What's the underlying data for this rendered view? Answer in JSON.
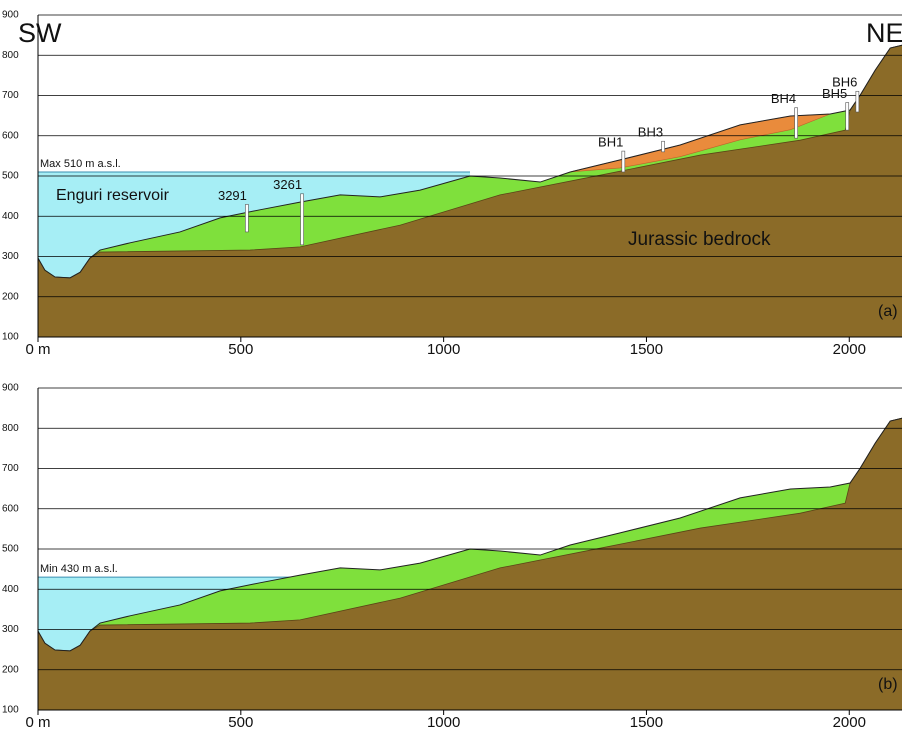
{
  "chart_data": [
    {
      "type": "profile",
      "title": "SW",
      "title_right": "NE",
      "panel_label": "(a)",
      "water_level_label": "Max 510 m a.s.l.",
      "water_name": "Enguri reservoir",
      "bedrock_name": "Jurassic bedrock",
      "water_level": 510,
      "water_x": [
        0,
        1065
      ],
      "xlim": [
        0,
        2130
      ],
      "ylim": [
        100,
        900
      ],
      "xticks": [
        {
          "value": 0,
          "label": "0 m"
        },
        500,
        1000,
        1500,
        2000
      ],
      "yticks": [
        100,
        200,
        300,
        400,
        500,
        600,
        700,
        800,
        900
      ],
      "grid": true,
      "colors": {
        "water": "#a6eef5",
        "sediment": "#7fe03c",
        "bedrock": "#8b6b28",
        "slide": "#e98b3c"
      },
      "surface": {
        "x": [
          0,
          17,
          42,
          79,
          104,
          128,
          153,
          227,
          350,
          449,
          547,
          646,
          745,
          843,
          942,
          1065,
          1139,
          1238,
          1312,
          1435,
          1583,
          1731,
          1855,
          1953,
          2002,
          2027,
          2064,
          2101,
          2130
        ],
        "y": [
          296,
          266,
          249,
          247,
          261,
          296,
          316,
          334,
          361,
          396,
          416,
          435,
          453,
          448,
          465,
          500,
          495,
          485,
          510,
          540,
          577,
          627,
          649,
          654,
          664,
          701,
          763,
          818,
          825
        ]
      },
      "bedrock": {
        "x": [
          0,
          17,
          42,
          79,
          104,
          128,
          153,
          523,
          646,
          893,
          1139,
          1386,
          1633,
          1879,
          1990,
          2002,
          2027,
          2064,
          2101,
          2130
        ],
        "y": [
          296,
          266,
          249,
          247,
          261,
          296,
          311,
          316,
          324,
          378,
          453,
          502,
          552,
          589,
          614,
          664,
          701,
          763,
          818,
          825
        ]
      },
      "slide": {
        "x": [
          1312,
          1435,
          1583,
          1731,
          1855,
          1953,
          1855,
          1731,
          1583,
          1435
        ],
        "y": [
          510,
          540,
          577,
          627,
          649,
          654,
          615,
          590,
          548,
          520
        ]
      },
      "boreholes": [
        {
          "label": "3291",
          "x": 515,
          "bottom": 361
        },
        {
          "label": "3261",
          "x": 651,
          "bottom": 329
        },
        {
          "label": "BH1",
          "x": 1443,
          "bottom": 510
        },
        {
          "label": "BH3",
          "x": 1541,
          "bottom": 560
        },
        {
          "label": "BH4",
          "x": 1869,
          "bottom": 594
        },
        {
          "label": "BH5",
          "x": 1995,
          "bottom": 614
        },
        {
          "label": "BH6",
          "x": 2020,
          "bottom": 659
        }
      ]
    },
    {
      "type": "profile",
      "panel_label": "(b)",
      "water_level_label": "Min 430 m a.s.l.",
      "water_level": 430,
      "water_x": [
        0,
        640
      ],
      "xlim": [
        0,
        2130
      ],
      "ylim": [
        100,
        900
      ],
      "xticks": [
        {
          "value": 0,
          "label": "0 m"
        },
        500,
        1000,
        1500,
        2000
      ],
      "yticks": [
        100,
        200,
        300,
        400,
        500,
        600,
        700,
        800,
        900
      ],
      "grid": true,
      "colors": {
        "water": "#a6eef5",
        "sediment": "#7fe03c",
        "bedrock": "#8b6b28"
      },
      "surface": {
        "x": [
          0,
          17,
          42,
          79,
          104,
          128,
          153,
          227,
          350,
          449,
          547,
          646,
          745,
          843,
          942,
          1065,
          1139,
          1238,
          1312,
          1435,
          1583,
          1731,
          1855,
          1953,
          2002,
          2027,
          2064,
          2101,
          2130
        ],
        "y": [
          296,
          266,
          249,
          247,
          261,
          296,
          316,
          334,
          361,
          396,
          416,
          435,
          453,
          448,
          465,
          500,
          495,
          485,
          510,
          540,
          577,
          627,
          649,
          654,
          664,
          701,
          763,
          818,
          825
        ]
      },
      "bedrock": {
        "x": [
          0,
          17,
          42,
          79,
          104,
          128,
          153,
          523,
          646,
          893,
          1139,
          1386,
          1633,
          1879,
          1990,
          2002,
          2027,
          2064,
          2101,
          2130
        ],
        "y": [
          296,
          266,
          249,
          247,
          261,
          296,
          311,
          316,
          324,
          378,
          453,
          502,
          552,
          589,
          614,
          664,
          701,
          763,
          818,
          825
        ]
      }
    }
  ]
}
